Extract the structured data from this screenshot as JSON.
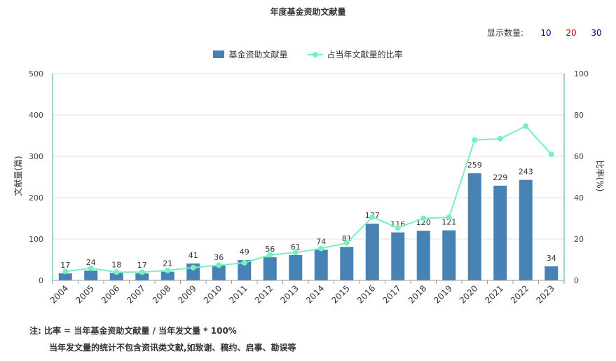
{
  "title": "年度基金资助文献量",
  "display_count": {
    "label": "显示数量:",
    "options": [
      {
        "label": "10",
        "color": "#0000cc"
      },
      {
        "label": "20",
        "color": "#cc0000"
      },
      {
        "label": "30",
        "color": "#00008b"
      }
    ]
  },
  "legend": {
    "bar": "基金资助文献量",
    "line": "占当年文献量的比率"
  },
  "notes": {
    "line1": "注:  比率 = 当年基金资助文献量 / 当年发文量 * 100%",
    "line2": "当年发文量的统计不包含资讯类文献,如致谢、稿约、启事、勘误等"
  },
  "colors": {
    "bar": "#4682b4",
    "line": "#77f0c0",
    "axis_right": "#3aa79a"
  },
  "chart_data": {
    "type": "bar",
    "title": "年度基金资助文献量",
    "categories": [
      "2004",
      "2005",
      "2006",
      "2007",
      "2008",
      "2009",
      "2010",
      "2011",
      "2012",
      "2013",
      "2014",
      "2015",
      "2016",
      "2017",
      "2018",
      "2019",
      "2020",
      "2021",
      "2022",
      "2023"
    ],
    "series": [
      {
        "name": "基金资助文献量",
        "type": "bar",
        "axis": "left",
        "values": [
          17,
          24,
          18,
          17,
          21,
          41,
          36,
          49,
          56,
          61,
          74,
          81,
          137,
          116,
          120,
          121,
          259,
          229,
          243,
          34
        ]
      },
      {
        "name": "占当年文献量的比率",
        "type": "line",
        "axis": "right",
        "values": [
          4.3,
          5.9,
          4.0,
          4.0,
          4.8,
          6.2,
          7.3,
          8.5,
          12.3,
          13.5,
          15.4,
          18.1,
          30.6,
          25.4,
          30.0,
          30.5,
          67.9,
          68.5,
          74.6,
          61.0
        ]
      }
    ],
    "ylabel_left": "文献量(篇)",
    "ylabel_right": "比率(%)",
    "ylim_left": [
      0,
      500
    ],
    "ylim_right": [
      0,
      100
    ],
    "yticks_left": [
      "0",
      "100",
      "200",
      "300",
      "400",
      "500"
    ],
    "yticks_right": [
      "0",
      "20",
      "40",
      "60",
      "80",
      "100"
    ],
    "grid": true,
    "legend_position": "top-center"
  }
}
